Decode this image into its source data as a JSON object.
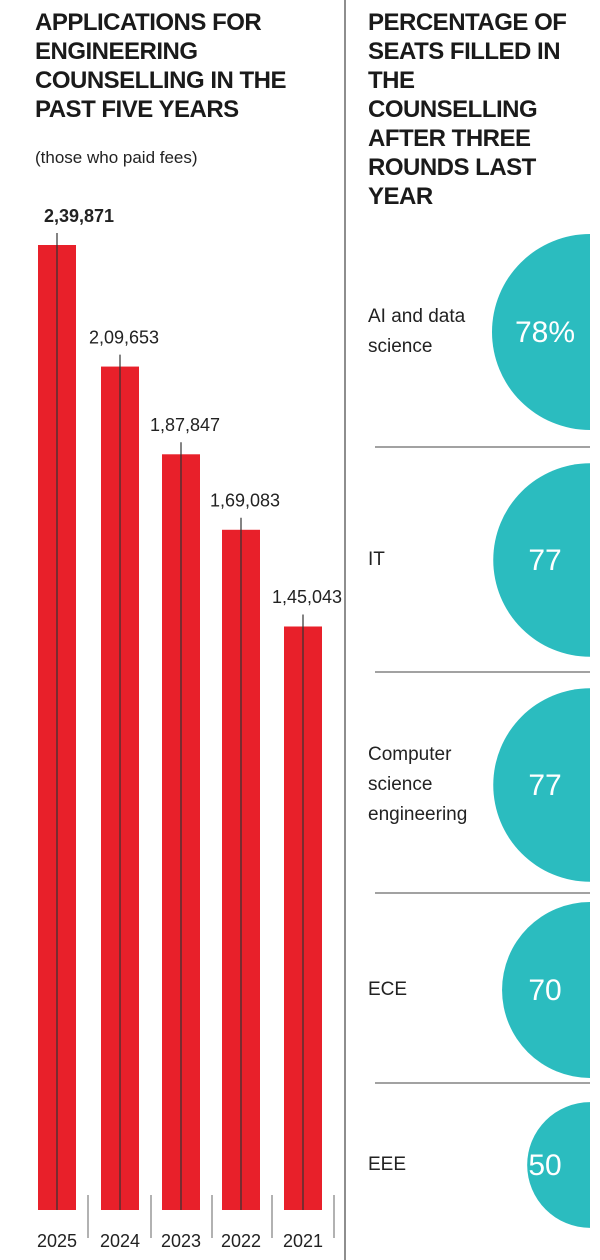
{
  "chart_data": [
    {
      "type": "bar",
      "title": "APPLICATIONS FOR ENGINEERING COUNSELLING IN THE PAST FIVE YEARS",
      "subtitle": "(those who paid fees)",
      "categories": [
        "2025",
        "2024",
        "2023",
        "2022",
        "2021"
      ],
      "values": [
        239871,
        209653,
        187847,
        169083,
        145043
      ],
      "value_labels": [
        "2,39,871",
        "2,09,653",
        "1,87,847",
        "1,69,083",
        "1,45,043"
      ],
      "color": "#e8202a"
    },
    {
      "type": "semicircle",
      "title": "PERCENTAGE OF SEATS FILLED IN THE COUNSELLING AFTER THREE ROUNDS LAST YEAR",
      "categories": [
        "AI and data science",
        "IT",
        "Computer science engineering",
        "ECE",
        "EEE"
      ],
      "values": [
        78,
        77,
        77,
        70,
        50
      ],
      "value_labels": [
        "78%",
        "77",
        "77",
        "70",
        "50"
      ],
      "color": "#2bbcbf"
    }
  ]
}
